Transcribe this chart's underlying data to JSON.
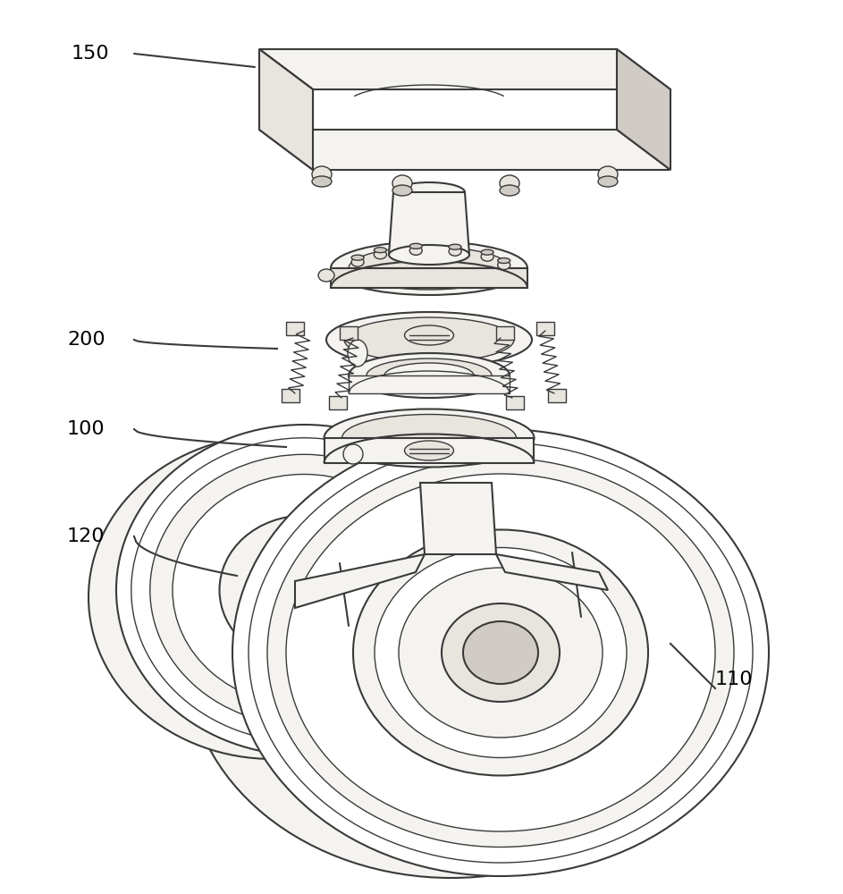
{
  "bg_color": "#ffffff",
  "lc": "#3a3a3a",
  "fill_white": "#ffffff",
  "fill_light": "#f5f3f0",
  "fill_mid": "#e8e4de",
  "fill_dark": "#d0ccc5",
  "fill_shadow": "#c0bbb3",
  "label_fontsize": 16,
  "figsize": [
    9.43,
    10.0
  ],
  "dpi": 100
}
